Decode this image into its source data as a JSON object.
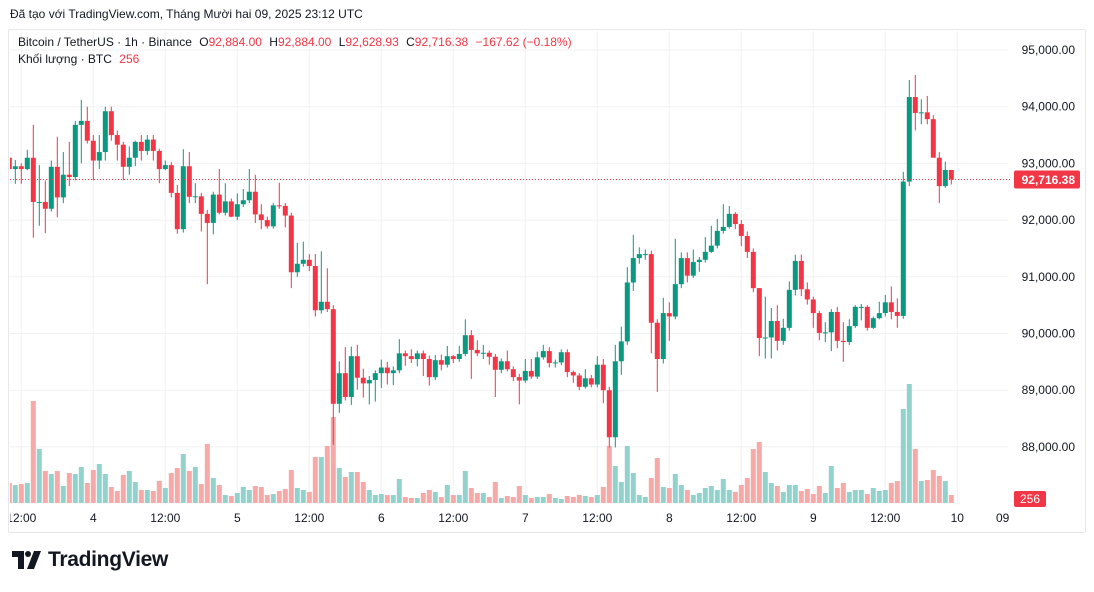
{
  "header": {
    "caption": "Đã tạo với TradingView.com, Tháng Mười hai 09, 2025 23:12 UTC"
  },
  "legend": {
    "symbol": "Bitcoin / TetherUS · 1h · Binance",
    "open_label": "O",
    "open": "92,884.00",
    "high_label": "H",
    "high": "92,884.00",
    "low_label": "L",
    "low": "92,628.93",
    "close_label": "C",
    "close": "92,716.38",
    "change": "−167.62 (−0.18%)",
    "volume_label": "Khối lượng · BTC",
    "volume": "256"
  },
  "logo": {
    "text": "TradingView"
  },
  "colors": {
    "up": "#089981",
    "down": "#f23645",
    "volume_up": "#92d2cc",
    "volume_down": "#f7a9a7",
    "grid": "#f0f1f3"
  },
  "chart_data": {
    "type": "candlestick",
    "interval": "1h",
    "price_ticks": [
      "95,000.00",
      "94,000.00",
      "93,000.00",
      "92,000.00",
      "91,000.00",
      "90,000.00",
      "89,000.00",
      "88,000.00"
    ],
    "price_tick_values": [
      95000,
      94000,
      93000,
      92000,
      91000,
      90000,
      89000,
      88000
    ],
    "last_price_label": "92,716.38",
    "last_price": 92716.38,
    "last_volume_label": "256",
    "time_ticks": [
      "12:00",
      "4",
      "12:00",
      "5",
      "12:00",
      "6",
      "12:00",
      "7",
      "12:00",
      "8",
      "12:00",
      "9",
      "12:00",
      "10"
    ],
    "time_tick_extra": "09:",
    "grid": true,
    "candles_ohlc": [
      [
        93100,
        93180,
        92880,
        92900
      ],
      [
        92900,
        93060,
        92640,
        92950
      ],
      [
        92950,
        93000,
        92640,
        92900
      ],
      [
        92900,
        93240,
        92880,
        93100
      ],
      [
        93100,
        93680,
        91690,
        92320
      ],
      [
        92320,
        92970,
        91900,
        92320
      ],
      [
        92320,
        92700,
        91770,
        92200
      ],
      [
        92200,
        93050,
        92150,
        92940
      ],
      [
        92940,
        93470,
        92050,
        92400
      ],
      [
        92400,
        93200,
        92300,
        92800
      ],
      [
        92800,
        93380,
        92600,
        92760
      ],
      [
        92760,
        93750,
        92700,
        93680
      ],
      [
        93680,
        94120,
        93000,
        93750
      ],
      [
        93750,
        94000,
        93350,
        93400
      ],
      [
        93400,
        93500,
        92700,
        93050
      ],
      [
        93050,
        93500,
        92900,
        93200
      ],
      [
        93200,
        94000,
        93050,
        93920
      ],
      [
        93920,
        94000,
        93400,
        93500
      ],
      [
        93500,
        93580,
        93050,
        93330
      ],
      [
        93330,
        93380,
        92700,
        92940
      ],
      [
        92940,
        93300,
        92800,
        93100
      ],
      [
        93100,
        93400,
        92950,
        93380
      ],
      [
        93380,
        93500,
        93050,
        93220
      ],
      [
        93220,
        93500,
        93150,
        93420
      ],
      [
        93420,
        93500,
        93050,
        93220
      ],
      [
        93220,
        93260,
        92650,
        92900
      ],
      [
        92900,
        93050,
        92880,
        92970
      ],
      [
        92970,
        93020,
        92400,
        92480
      ],
      [
        92480,
        92620,
        91760,
        91840
      ],
      [
        91840,
        93250,
        91780,
        92950
      ],
      [
        92950,
        93200,
        92300,
        92410
      ],
      [
        92410,
        92650,
        92300,
        92420
      ],
      [
        92420,
        92480,
        91800,
        92110
      ],
      [
        92110,
        92180,
        90870,
        91950
      ],
      [
        91950,
        92500,
        91750,
        92450
      ],
      [
        92450,
        92900,
        92100,
        92130
      ],
      [
        92130,
        92650,
        92080,
        92330
      ],
      [
        92330,
        92380,
        92050,
        92060
      ],
      [
        92060,
        92470,
        92000,
        92280
      ],
      [
        92280,
        92550,
        92230,
        92350
      ],
      [
        92350,
        92900,
        92300,
        92500
      ],
      [
        92500,
        92800,
        91950,
        92100
      ],
      [
        92100,
        92280,
        91840,
        92000
      ],
      [
        92000,
        92060,
        91850,
        91890
      ],
      [
        91890,
        92300,
        91850,
        92260
      ],
      [
        92260,
        92660,
        92200,
        92250
      ],
      [
        92250,
        92300,
        91870,
        92080
      ],
      [
        92080,
        92130,
        90800,
        91080
      ],
      [
        91080,
        91600,
        91000,
        91230
      ],
      [
        91230,
        91620,
        91180,
        91300
      ],
      [
        91300,
        91400,
        91100,
        91190
      ],
      [
        91190,
        91400,
        90300,
        90410
      ],
      [
        90410,
        91450,
        90350,
        90560
      ],
      [
        90560,
        91150,
        90380,
        90430
      ],
      [
        90430,
        90500,
        88040,
        88760
      ],
      [
        88760,
        89510,
        88600,
        89300
      ],
      [
        89300,
        89760,
        88820,
        88880
      ],
      [
        88880,
        89770,
        88740,
        89600
      ],
      [
        89600,
        89800,
        89010,
        89220
      ],
      [
        89220,
        89380,
        88870,
        89120
      ],
      [
        89120,
        89250,
        88750,
        89180
      ],
      [
        89180,
        89350,
        88800,
        89300
      ],
      [
        89300,
        89540,
        89040,
        89400
      ],
      [
        89400,
        89500,
        89100,
        89300
      ],
      [
        89300,
        89420,
        89090,
        89350
      ],
      [
        89350,
        89900,
        89300,
        89650
      ],
      [
        89650,
        89700,
        89430,
        89600
      ],
      [
        89600,
        89720,
        89480,
        89550
      ],
      [
        89550,
        89700,
        89420,
        89650
      ],
      [
        89650,
        89700,
        89250,
        89550
      ],
      [
        89550,
        89610,
        89080,
        89230
      ],
      [
        89230,
        89620,
        89180,
        89530
      ],
      [
        89530,
        89630,
        89350,
        89450
      ],
      [
        89450,
        89780,
        89400,
        89600
      ],
      [
        89600,
        89620,
        89480,
        89550
      ],
      [
        89550,
        89780,
        89500,
        89640
      ],
      [
        89640,
        90250,
        89600,
        89970
      ],
      [
        89970,
        90060,
        89200,
        89710
      ],
      [
        89710,
        89880,
        89600,
        89650
      ],
      [
        89650,
        89800,
        89550,
        89660
      ],
      [
        89660,
        89700,
        89450,
        89590
      ],
      [
        89590,
        89640,
        88880,
        89360
      ],
      [
        89360,
        89560,
        89300,
        89510
      ],
      [
        89510,
        89700,
        89330,
        89370
      ],
      [
        89370,
        89420,
        89160,
        89230
      ],
      [
        89230,
        89290,
        88750,
        89170
      ],
      [
        89170,
        89550,
        89130,
        89340
      ],
      [
        89340,
        89550,
        89200,
        89240
      ],
      [
        89240,
        89680,
        89200,
        89580
      ],
      [
        89580,
        89800,
        89540,
        89690
      ],
      [
        89690,
        89760,
        89400,
        89480
      ],
      [
        89480,
        89540,
        89400,
        89490
      ],
      [
        89490,
        89720,
        89440,
        89670
      ],
      [
        89670,
        89720,
        89230,
        89320
      ],
      [
        89320,
        89350,
        89130,
        89260
      ],
      [
        89260,
        89300,
        89000,
        89060
      ],
      [
        89060,
        89370,
        89030,
        89210
      ],
      [
        89210,
        89270,
        89050,
        89100
      ],
      [
        89100,
        89600,
        89050,
        89450
      ],
      [
        89450,
        89550,
        88770,
        89000
      ],
      [
        89000,
        89060,
        87990,
        88170
      ],
      [
        88170,
        89800,
        87990,
        89510
      ],
      [
        89510,
        90120,
        89270,
        89860
      ],
      [
        89860,
        91170,
        89800,
        90900
      ],
      [
        90900,
        91740,
        90750,
        91330
      ],
      [
        91330,
        91520,
        91230,
        91400
      ],
      [
        91400,
        91480,
        91300,
        91400
      ],
      [
        91400,
        91460,
        89650,
        90190
      ],
      [
        90190,
        90250,
        88970,
        89550
      ],
      [
        89550,
        90630,
        89470,
        90360
      ],
      [
        90360,
        90550,
        89870,
        90300
      ],
      [
        90300,
        91670,
        90250,
        90870
      ],
      [
        90870,
        91430,
        90800,
        91330
      ],
      [
        91330,
        91430,
        90900,
        91020
      ],
      [
        91020,
        91480,
        90980,
        91260
      ],
      [
        91260,
        91350,
        91090,
        91300
      ],
      [
        91300,
        91700,
        91250,
        91440
      ],
      [
        91440,
        91900,
        91420,
        91550
      ],
      [
        91550,
        92020,
        91500,
        91810
      ],
      [
        91810,
        92280,
        91760,
        91880
      ],
      [
        91880,
        92250,
        91850,
        92110
      ],
      [
        92110,
        92140,
        91840,
        91930
      ],
      [
        91930,
        92000,
        91540,
        91720
      ],
      [
        91720,
        91800,
        91330,
        91440
      ],
      [
        91440,
        91500,
        90730,
        90800
      ],
      [
        90800,
        90800,
        89600,
        89920
      ],
      [
        89920,
        90650,
        89560,
        89930
      ],
      [
        89930,
        90450,
        89560,
        90220
      ],
      [
        90220,
        90500,
        89700,
        89870
      ],
      [
        89870,
        90260,
        89800,
        90100
      ],
      [
        90100,
        90920,
        90050,
        90770
      ],
      [
        90770,
        91390,
        90670,
        91280
      ],
      [
        91280,
        91390,
        90660,
        90780
      ],
      [
        90780,
        90900,
        90510,
        90600
      ],
      [
        90600,
        90650,
        90100,
        90360
      ],
      [
        90360,
        90400,
        89880,
        90010
      ],
      [
        90010,
        90200,
        89850,
        90020
      ],
      [
        90020,
        90430,
        89690,
        90380
      ],
      [
        90380,
        90470,
        89740,
        89870
      ],
      [
        89870,
        90200,
        89500,
        89850
      ],
      [
        89850,
        90250,
        89800,
        90130
      ],
      [
        90130,
        90500,
        90100,
        90470
      ],
      [
        90470,
        90520,
        90230,
        90470
      ],
      [
        90470,
        90500,
        90050,
        90100
      ],
      [
        90100,
        90300,
        90080,
        90270
      ],
      [
        90270,
        90560,
        90250,
        90360
      ],
      [
        90360,
        90680,
        90300,
        90550
      ],
      [
        90550,
        90830,
        90250,
        90380
      ],
      [
        90380,
        90620,
        90100,
        90310
      ],
      [
        90310,
        92850,
        90260,
        92680
      ],
      [
        92680,
        94470,
        92600,
        94170
      ],
      [
        94170,
        94560,
        93580,
        93890
      ],
      [
        93890,
        94130,
        93690,
        93900
      ],
      [
        93900,
        94190,
        93690,
        93780
      ],
      [
        93780,
        93850,
        93250,
        93100
      ],
      [
        93100,
        93200,
        92300,
        92600
      ],
      [
        92600,
        93030,
        92570,
        92884
      ],
      [
        92884,
        92884,
        92628.93,
        92716.38
      ]
    ],
    "volumes_btc": [
      640,
      576,
      608,
      640,
      3264,
      1728,
      1024,
      928,
      1024,
      544,
      960,
      928,
      1152,
      640,
      1056,
      1248,
      928,
      512,
      384,
      896,
      1024,
      672,
      416,
      416,
      384,
      704,
      480,
      960,
      1120,
      1568,
      1024,
      1152,
      608,
      1888,
      800,
      576,
      256,
      224,
      320,
      512,
      416,
      544,
      512,
      256,
      288,
      384,
      448,
      1056,
      480,
      416,
      352,
      1472,
      1472,
      1824,
      2752,
      1120,
      832,
      992,
      992,
      672,
      416,
      256,
      288,
      256,
      256,
      768,
      192,
      160,
      160,
      320,
      416,
      352,
      192,
      576,
      256,
      256,
      1024,
      480,
      320,
      320,
      192,
      672,
      160,
      224,
      192,
      544,
      256,
      160,
      192,
      192,
      288,
      160,
      128,
      224,
      192,
      256,
      224,
      192,
      256,
      512,
      1824,
      1184,
      672,
      1824,
      960,
      256,
      192,
      800,
      1440,
      512,
      480,
      928,
      576,
      416,
      256,
      320,
      480,
      544,
      416,
      768,
      416,
      352,
      576,
      800,
      1728,
      1952,
      992,
      640,
      544,
      352,
      576,
      576,
      384,
      448,
      288,
      544,
      320,
      1184,
      480,
      640,
      352,
      416,
      416,
      288,
      480,
      384,
      416,
      640,
      704,
      3008,
      3808,
      1728,
      704,
      736,
      1056,
      864,
      704,
      256
    ]
  }
}
